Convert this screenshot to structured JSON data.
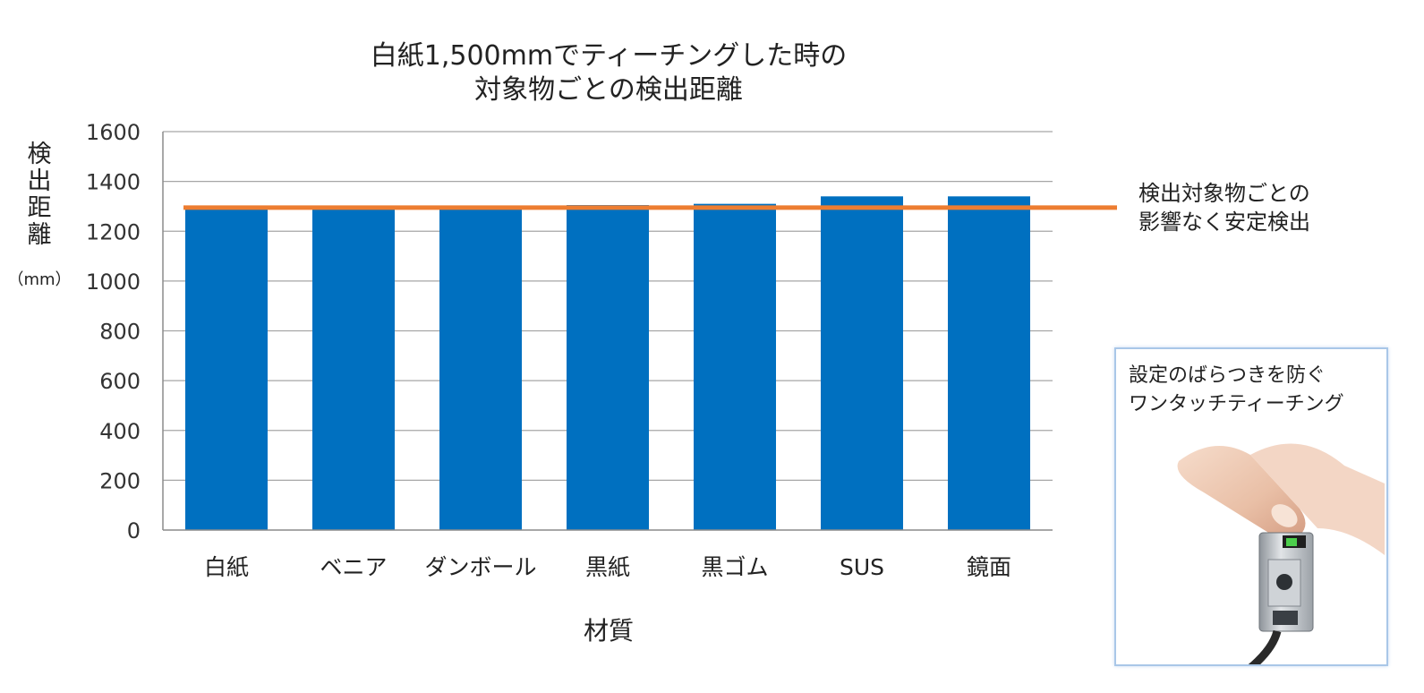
{
  "chart_data": {
    "type": "bar",
    "title_lines": [
      "白紙1,500mmでティーチングした時の",
      "対象物ごとの検出距離"
    ],
    "categories": [
      "白紙",
      "ベニア",
      "ダンボール",
      "黒紙",
      "黒ゴム",
      "SUS",
      "鏡面"
    ],
    "values": [
      1300,
      1290,
      1290,
      1305,
      1310,
      1340,
      1340
    ],
    "ylabel": "検出距離",
    "yunit": "（mm）",
    "xlabel": "材質",
    "ylim": [
      0,
      1600
    ],
    "yticks": [
      0,
      200,
      400,
      600,
      800,
      1000,
      1200,
      1400,
      1600
    ],
    "grid": true,
    "bar_color": "#0070c0",
    "reference_line": {
      "value": 1295,
      "color": "#ed7d31",
      "label_lines": [
        "検出対象物ごとの",
        "影響なく安定検出"
      ]
    }
  },
  "inset": {
    "text_lines": [
      "設定のばらつきを防ぐ",
      "ワンタッチティーチング"
    ],
    "photo_icon": "finger-pressing-sensor-icon"
  }
}
